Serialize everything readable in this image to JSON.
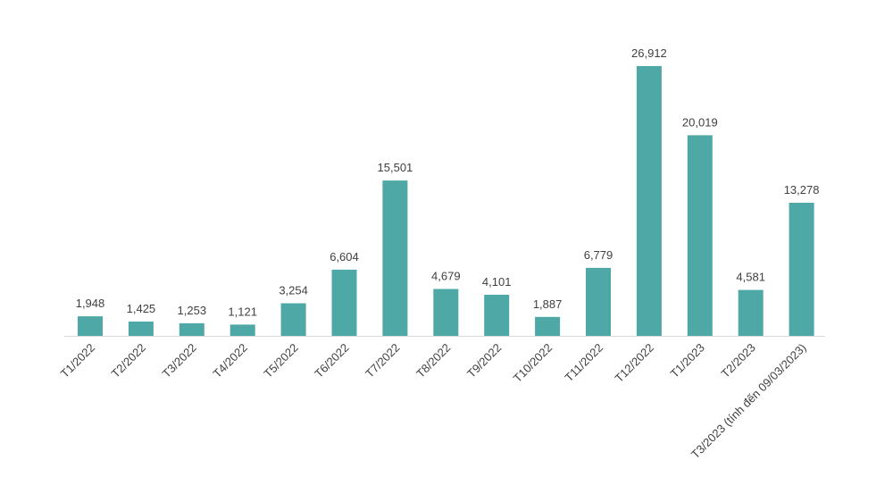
{
  "chart_data": {
    "type": "bar",
    "title": "",
    "xlabel": "",
    "ylabel": "",
    "categories": [
      "T1/2022",
      "T2/2022",
      "T3/2022",
      "T4/2022",
      "T5/2022",
      "T6/2022",
      "T7/2022",
      "T8/2022",
      "T9/2022",
      "T10/2022",
      "T11/2022",
      "T12/2022",
      "T1/2023",
      "T2/2023",
      "T3/2023 (tính đến 09/03/2023)"
    ],
    "values": [
      1948,
      1425,
      1253,
      1121,
      3254,
      6604,
      15501,
      4679,
      4101,
      1887,
      6779,
      26912,
      20019,
      4581,
      13278
    ],
    "value_labels": [
      "1,948",
      "1,425",
      "1,253",
      "1,121",
      "3,254",
      "6,604",
      "15,501",
      "4,679",
      "4,101",
      "1,887",
      "6,779",
      "26,912",
      "20,019",
      "4,581",
      "13,278"
    ],
    "ylim": [
      0,
      26912
    ],
    "grid": false,
    "legend": "none",
    "bar_color": "#4ea8a6",
    "axis_color": "#d9d9d9"
  }
}
